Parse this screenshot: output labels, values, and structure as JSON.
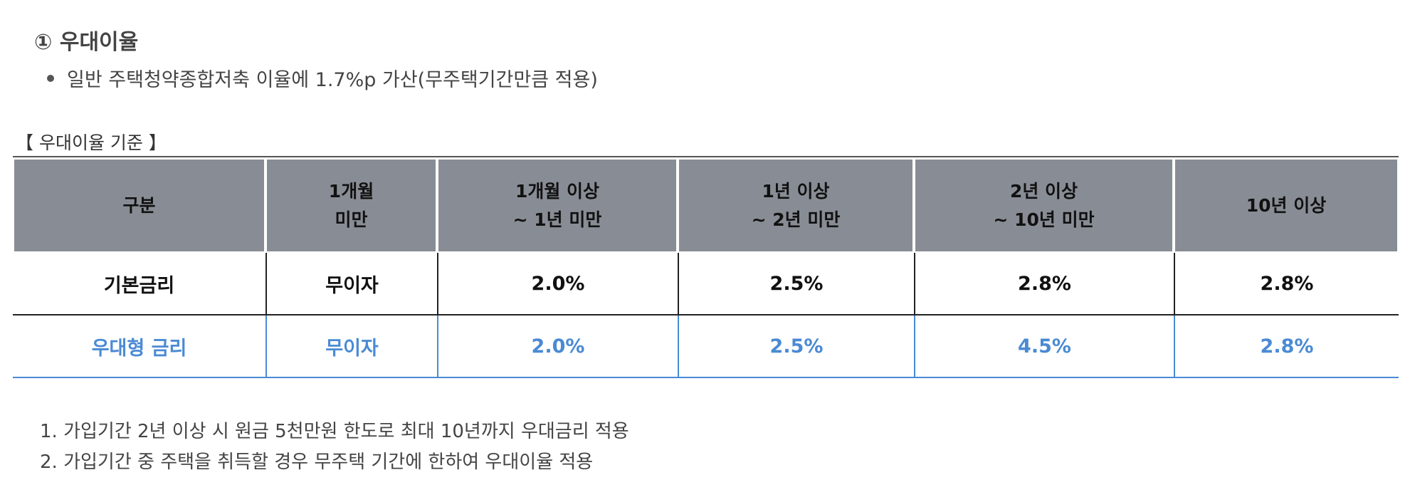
{
  "section": {
    "heading": "① 우대이율",
    "bullet": "일반 주택청약종합저축 이율에 1.7%p 가산(무주택기간만큼 적용)"
  },
  "table": {
    "caption": "【 우대이율 기준 】",
    "header": [
      [
        "구분"
      ],
      [
        "1개월",
        "미만"
      ],
      [
        "1개월 이상",
        "~ 1년 미만"
      ],
      [
        "1년 이상",
        "~ 2년 미만"
      ],
      [
        "2년 이상",
        "~ 10년 미만"
      ],
      [
        "10년 이상"
      ]
    ],
    "rows": [
      [
        "기본금리",
        "무이자",
        "2.0%",
        "2.5%",
        "2.8%",
        "2.8%"
      ],
      [
        "우대형 금리",
        "무이자",
        "2.0%",
        "2.5%",
        "4.5%",
        "2.8%"
      ]
    ]
  },
  "notes": [
    "1. 가입기간 2년 이상 시 원금 5천만원 한도로 최대 10년까지 우대금리 적용",
    "2. 가입기간 중 주택을 취득할 경우 무주택 기간에 한하여 우대이율 적용"
  ]
}
